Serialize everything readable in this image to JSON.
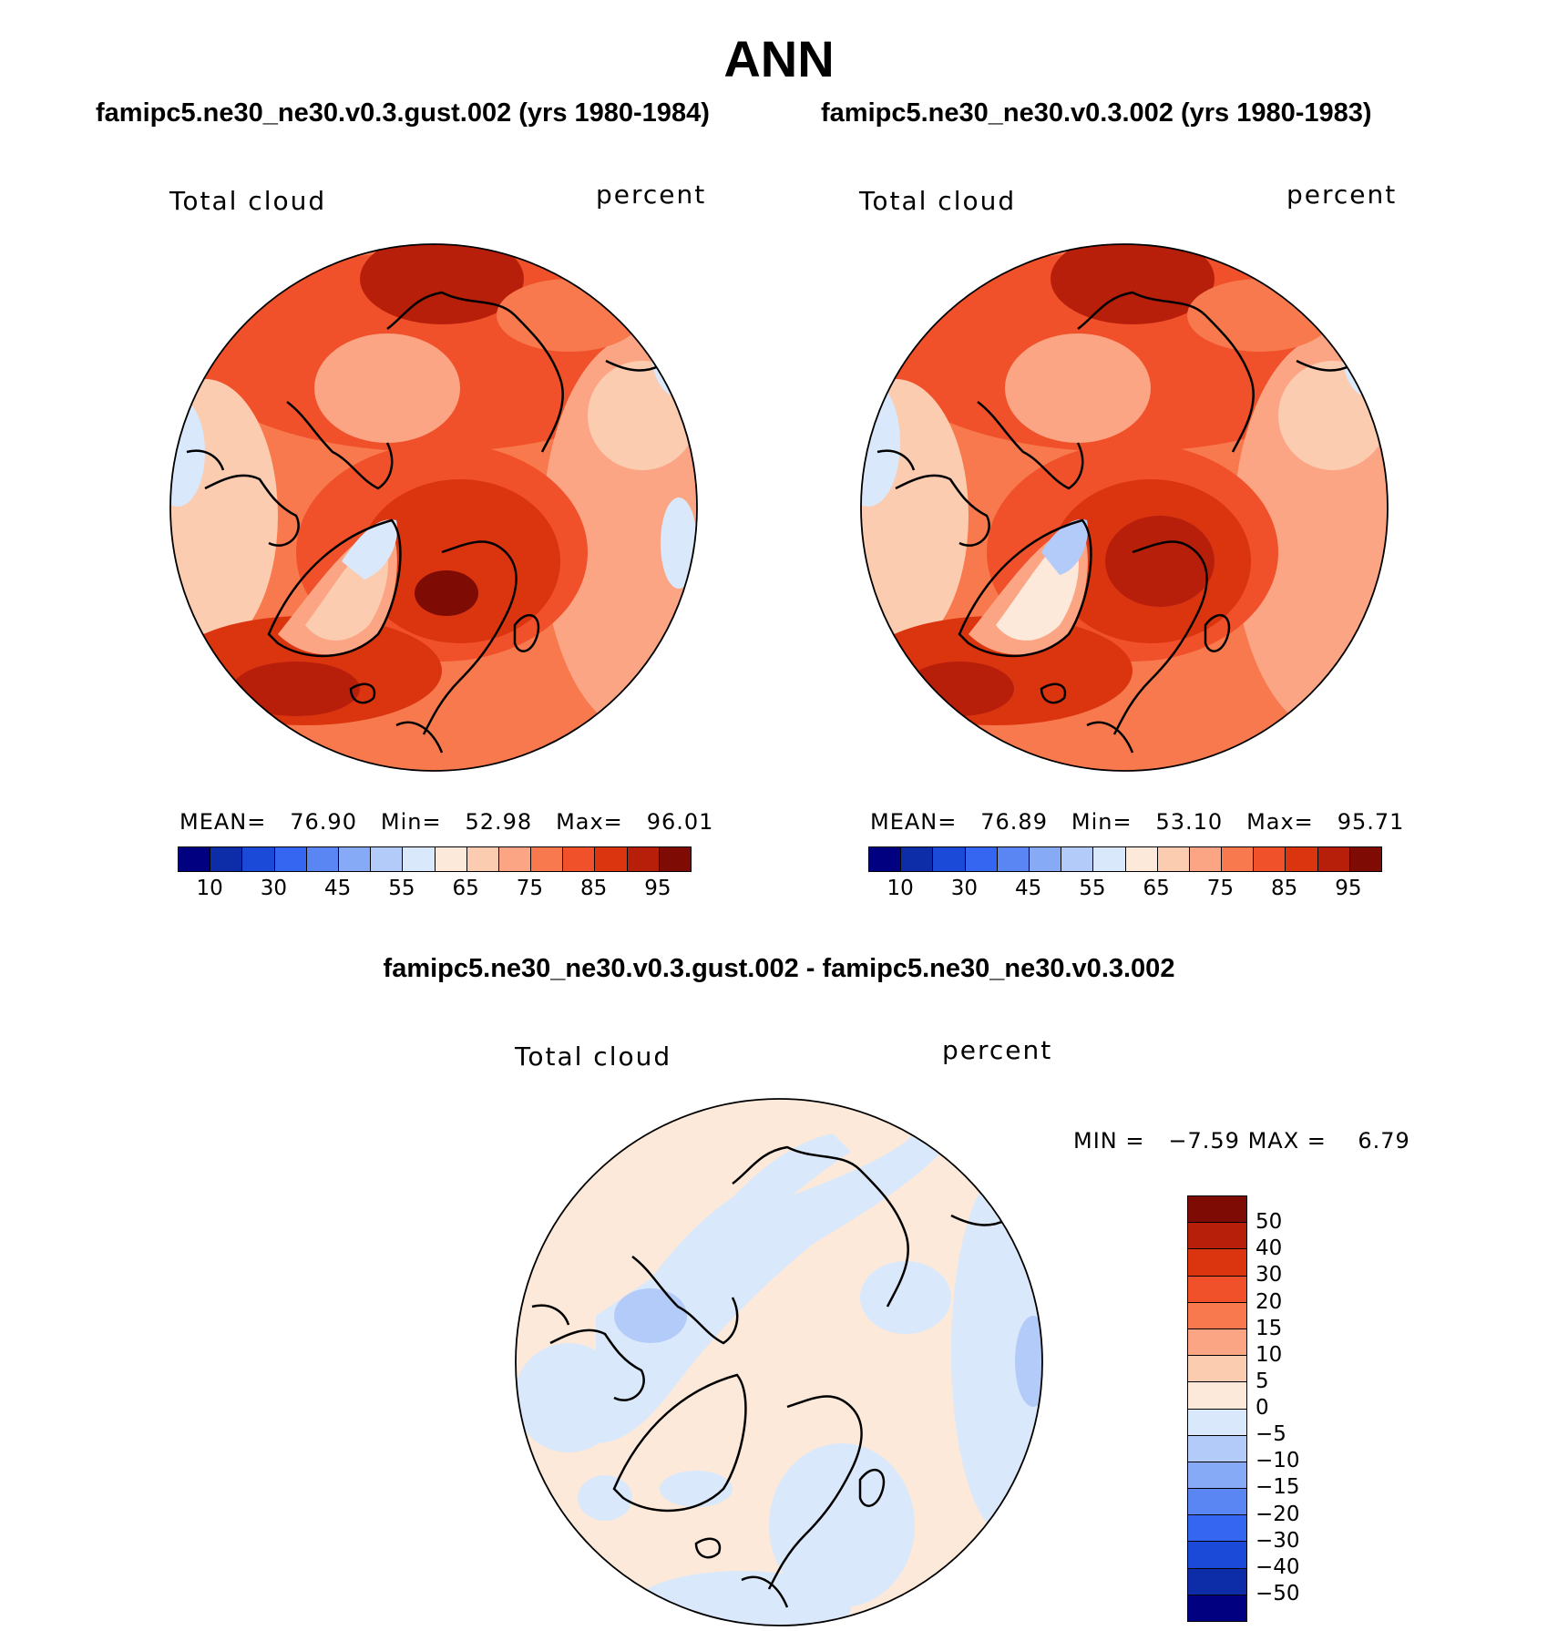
{
  "title": "ANN",
  "chart_data": [
    {
      "type": "heatmap",
      "projection": "north-polar-stereographic",
      "title": "famipc5.ne30_ne30.v0.3.gust.002 (yrs 1980-1984)",
      "left_label": "Total cloud",
      "right_label": "percent",
      "stats": {
        "mean_label": "MEAN=",
        "mean": "76.90",
        "min_label": "Min=",
        "min": "52.98",
        "max_label": "Max=",
        "max": "96.01"
      },
      "levels": [
        "10",
        "30",
        "45",
        "55",
        "65",
        "75",
        "85",
        "95"
      ],
      "colors": [
        "#000080",
        "#0c2ca8",
        "#1c4ad8",
        "#3566f2",
        "#5a86f4",
        "#87aaf6",
        "#b3cbf8",
        "#d9e9fb",
        "#fde9d9",
        "#fcccb1",
        "#fba584",
        "#f8794d",
        "#f0512a",
        "#db3510",
        "#b81f0b",
        "#7f0b05"
      ]
    },
    {
      "type": "heatmap",
      "projection": "north-polar-stereographic",
      "title": "famipc5.ne30_ne30.v0.3.002 (yrs 1980-1983)",
      "left_label": "Total cloud",
      "right_label": "percent",
      "stats": {
        "mean_label": "MEAN=",
        "mean": "76.89",
        "min_label": "Min=",
        "min": "53.10",
        "max_label": "Max=",
        "max": "95.71"
      },
      "levels": [
        "10",
        "30",
        "45",
        "55",
        "65",
        "75",
        "85",
        "95"
      ],
      "colors": [
        "#000080",
        "#0c2ca8",
        "#1c4ad8",
        "#3566f2",
        "#5a86f4",
        "#87aaf6",
        "#b3cbf8",
        "#d9e9fb",
        "#fde9d9",
        "#fcccb1",
        "#fba584",
        "#f8794d",
        "#f0512a",
        "#db3510",
        "#b81f0b",
        "#7f0b05"
      ]
    },
    {
      "type": "heatmap",
      "projection": "north-polar-stereographic",
      "title": "famipc5.ne30_ne30.v0.3.gust.002 - famipc5.ne30_ne30.v0.3.002",
      "left_label": "Total cloud",
      "right_label": "percent",
      "stats": {
        "min_label": "MIN =",
        "min": "−7.59",
        "max_label": "MAX =",
        "max": "6.79"
      },
      "levels": [
        "50",
        "40",
        "30",
        "20",
        "15",
        "10",
        "5",
        "0",
        "−5",
        "−10",
        "−15",
        "−20",
        "−30",
        "−40",
        "−50"
      ],
      "colors": [
        "#7f0b05",
        "#b81f0b",
        "#db3510",
        "#f0512a",
        "#f8794d",
        "#fba584",
        "#fcccb1",
        "#fde9d9",
        "#d9e9fb",
        "#b3cbf8",
        "#87aaf6",
        "#5a86f4",
        "#3566f2",
        "#1c4ad8",
        "#0c2ca8",
        "#000080"
      ]
    }
  ]
}
